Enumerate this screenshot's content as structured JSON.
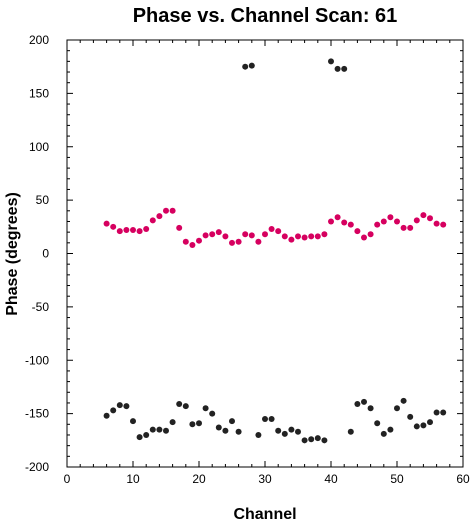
{
  "chart_data": {
    "type": "scatter",
    "title": "Phase vs. Channel Scan: 61",
    "xlabel": "Channel",
    "ylabel": "Phase (degrees)",
    "xlim": [
      0,
      60
    ],
    "ylim": [
      -200,
      200
    ],
    "x_ticks": [
      0,
      10,
      20,
      30,
      40,
      50,
      60
    ],
    "y_ticks": [
      -200,
      -150,
      -100,
      -50,
      0,
      50,
      100,
      150,
      200
    ],
    "grid": false,
    "legend": "none",
    "series": [
      {
        "color": "#d6005f",
        "points": [
          [
            6,
            28
          ],
          [
            7,
            25
          ],
          [
            8,
            21
          ],
          [
            9,
            22
          ],
          [
            10,
            22
          ],
          [
            11,
            21
          ],
          [
            12,
            23
          ],
          [
            13,
            31
          ],
          [
            14,
            35
          ],
          [
            15,
            40
          ],
          [
            16,
            40
          ],
          [
            17,
            24
          ],
          [
            18,
            11
          ],
          [
            19,
            8
          ],
          [
            20,
            12
          ],
          [
            21,
            17
          ],
          [
            22,
            18
          ],
          [
            23,
            20
          ],
          [
            24,
            16
          ],
          [
            25,
            10
          ],
          [
            26,
            11
          ],
          [
            27,
            18
          ],
          [
            28,
            17
          ],
          [
            29,
            11
          ],
          [
            30,
            18
          ],
          [
            31,
            23
          ],
          [
            32,
            21
          ],
          [
            33,
            16
          ],
          [
            34,
            13
          ],
          [
            35,
            16
          ],
          [
            36,
            15
          ],
          [
            37,
            16
          ],
          [
            38,
            16
          ],
          [
            39,
            18
          ],
          [
            40,
            30
          ],
          [
            41,
            34
          ],
          [
            42,
            29
          ],
          [
            43,
            27
          ],
          [
            44,
            21
          ],
          [
            45,
            15
          ],
          [
            46,
            18
          ],
          [
            47,
            27
          ],
          [
            48,
            30
          ],
          [
            49,
            34
          ],
          [
            50,
            30
          ],
          [
            51,
            24
          ],
          [
            52,
            24
          ],
          [
            53,
            31
          ],
          [
            54,
            36
          ],
          [
            55,
            33
          ],
          [
            56,
            28
          ],
          [
            57,
            27
          ]
        ]
      },
      {
        "color": "#222222",
        "points": [
          [
            6,
            -152
          ],
          [
            7,
            -147
          ],
          [
            8,
            -142
          ],
          [
            9,
            -143
          ],
          [
            10,
            -157
          ],
          [
            11,
            -172
          ],
          [
            12,
            -170
          ],
          [
            13,
            -165
          ],
          [
            14,
            -165
          ],
          [
            15,
            -166
          ],
          [
            16,
            -158
          ],
          [
            17,
            -141
          ],
          [
            18,
            -143
          ],
          [
            19,
            -160
          ],
          [
            20,
            -159
          ],
          [
            21,
            -145
          ],
          [
            22,
            -150
          ],
          [
            23,
            -163
          ],
          [
            24,
            -166
          ],
          [
            25,
            -157
          ],
          [
            26,
            -167
          ],
          [
            27,
            175
          ],
          [
            28,
            176
          ],
          [
            29,
            -170
          ],
          [
            30,
            -155
          ],
          [
            31,
            -155
          ],
          [
            32,
            -166
          ],
          [
            33,
            -169
          ],
          [
            34,
            -165
          ],
          [
            35,
            -167
          ],
          [
            36,
            -175
          ],
          [
            37,
            -174
          ],
          [
            38,
            -173
          ],
          [
            39,
            -175
          ],
          [
            40,
            180
          ],
          [
            41,
            173
          ],
          [
            42,
            173
          ],
          [
            43,
            -167
          ],
          [
            44,
            -141
          ],
          [
            45,
            -139
          ],
          [
            46,
            -145
          ],
          [
            47,
            -159
          ],
          [
            48,
            -169
          ],
          [
            49,
            -165
          ],
          [
            50,
            -145
          ],
          [
            51,
            -138
          ],
          [
            52,
            -153
          ],
          [
            53,
            -162
          ],
          [
            54,
            -161
          ],
          [
            55,
            -158
          ],
          [
            56,
            -149
          ],
          [
            57,
            -149
          ]
        ]
      }
    ]
  }
}
